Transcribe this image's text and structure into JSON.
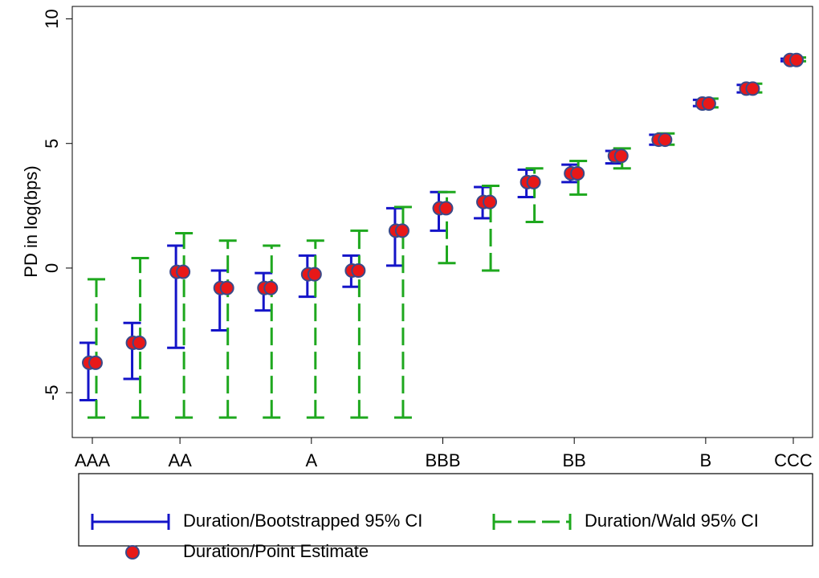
{
  "chart_data": {
    "type": "errorbar",
    "y_label": "PD in log(bps)",
    "categories": [
      "AAA",
      null,
      "AA",
      null,
      null,
      "A",
      null,
      null,
      "BBB",
      null,
      null,
      "BB",
      null,
      null,
      "B",
      null,
      "CCC"
    ],
    "ylim": [
      -6.8,
      10.5
    ],
    "yticks": [
      -5,
      0,
      5,
      10
    ],
    "series": [
      {
        "name": "Duration/Bootstrapped 95% CI",
        "color": "#1414c8",
        "style": "solid",
        "low": [
          -5.3,
          -4.45,
          -3.2,
          -2.5,
          -1.7,
          -1.15,
          -0.75,
          0.1,
          1.5,
          2.0,
          2.85,
          3.45,
          4.2,
          4.95,
          6.5,
          7.05,
          8.3
        ],
        "high": [
          -3.0,
          -2.2,
          0.9,
          -0.1,
          -0.2,
          0.5,
          0.5,
          2.4,
          3.05,
          3.25,
          3.95,
          4.15,
          4.7,
          5.35,
          6.75,
          7.35,
          8.4
        ]
      },
      {
        "name": "Duration/Wald 95% CI",
        "color": "#1ea81e",
        "style": "dashed",
        "low": [
          -6.0,
          -6.0,
          -6.0,
          -6.0,
          -6.0,
          -6.0,
          -6.0,
          -6.0,
          0.2,
          -0.1,
          1.85,
          2.95,
          4.0,
          4.95,
          6.45,
          7.05,
          8.3
        ],
        "high": [
          -0.45,
          0.4,
          1.4,
          1.1,
          0.9,
          1.1,
          1.5,
          2.45,
          3.05,
          3.3,
          4.0,
          4.3,
          4.8,
          5.4,
          6.8,
          7.4,
          8.45
        ]
      },
      {
        "name": "Duration/Point Estimate",
        "color": "#e81818",
        "values": [
          -3.8,
          -3.0,
          -0.15,
          -0.8,
          -0.8,
          -0.25,
          -0.1,
          1.5,
          2.4,
          2.65,
          3.45,
          3.8,
          4.5,
          5.15,
          6.6,
          7.2,
          8.35
        ]
      }
    ]
  }
}
